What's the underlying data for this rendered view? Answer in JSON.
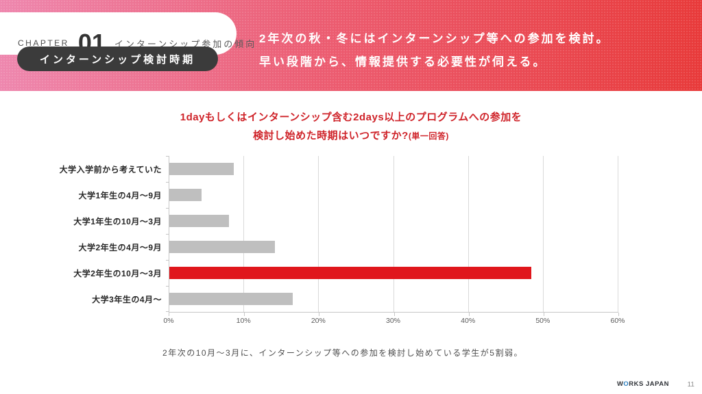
{
  "header": {
    "chapter_label": "CHAPTER",
    "chapter_number": "01",
    "chapter_title": "インターンシップ参加の傾向",
    "badge": "インターンシップ検討時期",
    "headline_line1": "2年次の秋・冬にはインターンシップ等への参加を検討。",
    "headline_line2": "早い段階から、情報提供する必要性が伺える。",
    "gradient_left": "#ee87ae",
    "gradient_right": "#e83a3a"
  },
  "chart_title": {
    "line1": "1dayもしくはインターンシップ含む2days以上のプログラムへの参加を",
    "line2": "検討し始めた時期はいつですか?",
    "line2_note": "(単一回答)",
    "color": "#cf2329"
  },
  "chart_data": {
    "type": "bar",
    "orientation": "horizontal",
    "title": "1dayもしくはインターンシップ含む2days以上のプログラムへの参加を検討し始めた時期はいつですか?(単一回答)",
    "categories": [
      "大学入学前から考えていた",
      "大学1年生の4月〜9月",
      "大学1年生の10月〜3月",
      "大学2年生の4月〜9月",
      "大学2年生の10月〜3月",
      "大学3年生の4月〜"
    ],
    "values": [
      8.6,
      4.3,
      8.0,
      14.1,
      48.4,
      16.5
    ],
    "highlight_index": 4,
    "bar_color": "#bfbfbf",
    "highlight_color": "#e0161c",
    "xlabel": "",
    "ylabel": "",
    "xlim": [
      0,
      60
    ],
    "x_tick_step": 10,
    "x_tick_labels": [
      "0%",
      "10%",
      "20%",
      "30%",
      "40%",
      "50%",
      "60%"
    ],
    "grid": true,
    "legend": false
  },
  "footnote": "2年次の10月〜3月に、インターンシップ等への参加を検討し始めている学生が5割弱。",
  "footer": {
    "logo_w": "W",
    "logo_o": "O",
    "logo_rest": "RKS JAPAN",
    "page_number": "11"
  }
}
